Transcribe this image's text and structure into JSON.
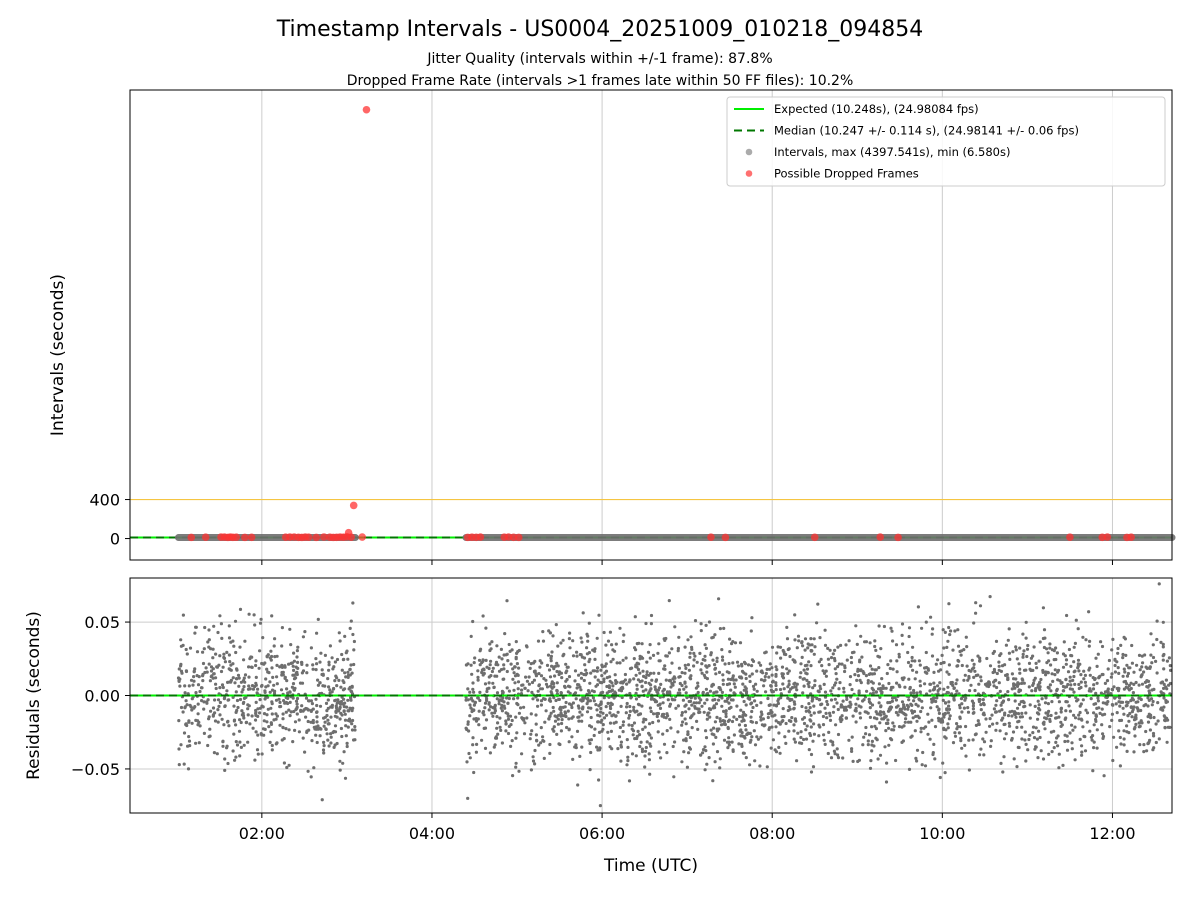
{
  "chart_data": {
    "type": "scatter",
    "title": "Timestamp Intervals - US0004_20251009_010218_094854",
    "subtitle_lines": [
      "Jitter Quality (intervals within +/-1 frame): 87.8%",
      "Dropped Frame Rate (intervals >1 frames late within 50 FF files): 10.2%"
    ],
    "xlabel": "Time (UTC)",
    "x_ticks": [
      "02:00",
      "04:00",
      "06:00",
      "08:00",
      "10:00",
      "12:00"
    ],
    "x_tick_values_hours": [
      2,
      4,
      6,
      8,
      10,
      12
    ],
    "xlim_hours": [
      0.45,
      12.7
    ],
    "grid": true,
    "legend_position": "top-right",
    "top_panel": {
      "ylabel": "Intervals (seconds)",
      "y_ticks": [
        "0",
        "400"
      ],
      "y_tick_values": [
        0,
        400
      ],
      "ylim": [
        -220,
        4600
      ],
      "reference_line": {
        "value": 400,
        "color": "#f5c542"
      },
      "expected_value": 10.248,
      "median_value": 10.247,
      "interval_segments_hours": [
        [
          1.02,
          3.1
        ],
        [
          4.4,
          12.7
        ]
      ],
      "dropped_frames": [
        {
          "x": 1.17,
          "y": 12
        },
        {
          "x": 1.34,
          "y": 14
        },
        {
          "x": 1.52,
          "y": 15
        },
        {
          "x": 1.56,
          "y": 15
        },
        {
          "x": 1.6,
          "y": 12
        },
        {
          "x": 1.63,
          "y": 16
        },
        {
          "x": 1.66,
          "y": 13
        },
        {
          "x": 1.7,
          "y": 14
        },
        {
          "x": 1.8,
          "y": 12
        },
        {
          "x": 1.88,
          "y": 13
        },
        {
          "x": 2.28,
          "y": 14
        },
        {
          "x": 2.33,
          "y": 15
        },
        {
          "x": 2.38,
          "y": 16
        },
        {
          "x": 2.43,
          "y": 13
        },
        {
          "x": 2.47,
          "y": 12
        },
        {
          "x": 2.51,
          "y": 15
        },
        {
          "x": 2.55,
          "y": 14
        },
        {
          "x": 2.64,
          "y": 12
        },
        {
          "x": 2.73,
          "y": 16
        },
        {
          "x": 2.8,
          "y": 14
        },
        {
          "x": 2.84,
          "y": 12
        },
        {
          "x": 2.88,
          "y": 13
        },
        {
          "x": 2.92,
          "y": 15
        },
        {
          "x": 2.96,
          "y": 14
        },
        {
          "x": 3.0,
          "y": 18
        },
        {
          "x": 3.02,
          "y": 60
        },
        {
          "x": 3.05,
          "y": 14
        },
        {
          "x": 3.08,
          "y": 340
        },
        {
          "x": 3.18,
          "y": 15
        },
        {
          "x": 3.23,
          "y": 4397.5
        },
        {
          "x": 4.42,
          "y": 12
        },
        {
          "x": 4.47,
          "y": 14
        },
        {
          "x": 4.52,
          "y": 13
        },
        {
          "x": 4.57,
          "y": 15
        },
        {
          "x": 4.85,
          "y": 14
        },
        {
          "x": 4.9,
          "y": 16
        },
        {
          "x": 4.96,
          "y": 13
        },
        {
          "x": 5.02,
          "y": 12
        },
        {
          "x": 7.28,
          "y": 14
        },
        {
          "x": 7.45,
          "y": 12
        },
        {
          "x": 8.5,
          "y": 13
        },
        {
          "x": 9.27,
          "y": 15
        },
        {
          "x": 9.48,
          "y": 12
        },
        {
          "x": 11.5,
          "y": 14
        },
        {
          "x": 11.88,
          "y": 13
        },
        {
          "x": 11.94,
          "y": 15
        },
        {
          "x": 12.17,
          "y": 12
        },
        {
          "x": 12.22,
          "y": 14
        }
      ]
    },
    "bottom_panel": {
      "ylabel": "Residuals (seconds)",
      "y_ticks": [
        "0.05",
        "0.00",
        "−0.05"
      ],
      "y_tick_values": [
        0.05,
        0.0,
        -0.05
      ],
      "ylim": [
        -0.08,
        0.08
      ],
      "residual_std": 0.022,
      "max_residual": 0.076,
      "min_residual": -0.075,
      "zero_line_value": 0.0
    },
    "legend": [
      {
        "label": "Expected (10.248s), (24.98084 fps)",
        "style": "solid-line",
        "color": "#00ee00"
      },
      {
        "label": "Median (10.247 +/- 0.114 s), (24.98141 +/- 0.06 fps)",
        "style": "dashed-line",
        "color": "#007700"
      },
      {
        "label": "Intervals, max (4397.541s), min (6.580s)",
        "style": "marker",
        "color": "#888888"
      },
      {
        "label": "Possible Dropped Frames",
        "style": "marker",
        "color": "#ff3333"
      }
    ],
    "colors": {
      "expected": "#00ee00",
      "median": "#007700",
      "intervals": "#6e6e6e",
      "dropped": "#ff3333",
      "reference": "#f5c542",
      "grid": "#cccccc"
    }
  }
}
